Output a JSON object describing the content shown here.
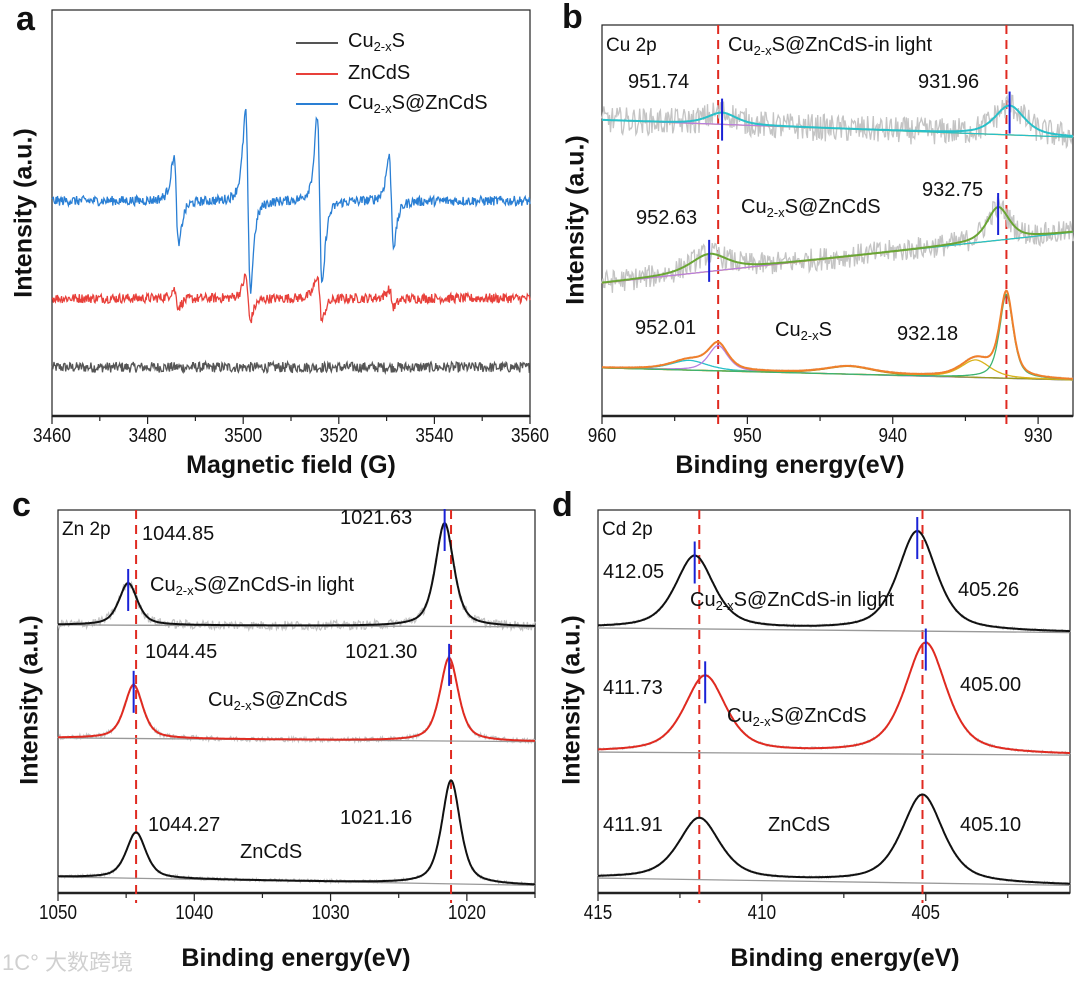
{
  "watermark": "1C° 大数跨境",
  "panels": {
    "a": "a",
    "b": "b",
    "c": "c",
    "d": "d"
  },
  "chart_data": [
    {
      "panel": "a",
      "type": "line",
      "xlabel": "Magnetic field (G)",
      "ylabel": "Intensity (a.u.)",
      "xlim": [
        3460,
        3560
      ],
      "ylim": [
        0,
        10
      ],
      "xticks": [
        3460,
        3480,
        3500,
        3520,
        3540,
        3560
      ],
      "legend": "top-right",
      "series": [
        {
          "name": "Cu2-xS",
          "color": "#555555",
          "baseline": 1.2,
          "noise": 0.13,
          "features": []
        },
        {
          "name": "ZnCdS",
          "color": "#e8403a",
          "baseline": 2.9,
          "noise": 0.12,
          "features": [
            {
              "center": 3486,
              "amplitude": 0.2
            },
            {
              "center": 3501,
              "amplitude": 0.5
            },
            {
              "center": 3516,
              "amplitude": 0.5
            },
            {
              "center": 3531,
              "amplitude": 0.2
            }
          ]
        },
        {
          "name": "Cu2-xS@ZnCdS",
          "color": "#2a7fd4",
          "baseline": 5.3,
          "noise": 0.12,
          "features": [
            {
              "center": 3486,
              "amplitude": 1.0
            },
            {
              "center": 3501,
              "amplitude": 2.0
            },
            {
              "center": 3516,
              "amplitude": 1.9
            },
            {
              "center": 3531,
              "amplitude": 1.0
            }
          ]
        }
      ]
    },
    {
      "panel": "b",
      "type": "line",
      "title": "Cu 2p",
      "xlabel": "Binding energy(eV)",
      "ylabel": "Intensity (a.u.)",
      "xlim": [
        960,
        927.6
      ],
      "ylim": [
        0,
        10
      ],
      "xticks": [
        960,
        950,
        940,
        930
      ],
      "reference_lines": [
        952.01,
        932.18
      ],
      "series": [
        {
          "name": "Cu2-xS@ZnCdS-in light",
          "fit_color": "#29c0c8",
          "baseline": [
            7.57,
            7.13
          ],
          "noise": 0.35,
          "marker": true,
          "peaks": [
            {
              "center": 951.74,
              "height": 0.3,
              "width": 1.2,
              "label": "951.74"
            },
            {
              "center": 931.96,
              "height": 0.75,
              "width": 1.2,
              "label": "931.96"
            }
          ]
        },
        {
          "name": "Cu2-xS@ZnCdS",
          "fit_color": "#6aa534",
          "baseline": [
            3.4,
            4.7
          ],
          "noise": 0.3,
          "marker": true,
          "peaks": [
            {
              "center": 952.63,
              "height": 0.45,
              "width": 1.5,
              "label": "952.63"
            },
            {
              "center": 932.75,
              "height": 0.85,
              "width": 0.9,
              "label": "932.75"
            }
          ]
        },
        {
          "name": "Cu2-xS",
          "fit_color": "#f07f2b",
          "baseline": [
            1.23,
            0.92
          ],
          "noise": 0.02,
          "marker": false,
          "peaks": [
            {
              "center": 954,
              "height": 0.25,
              "width": 1.5
            },
            {
              "center": 952.01,
              "height": 0.65,
              "width": 0.8,
              "label": "952.01"
            },
            {
              "center": 943,
              "height": 0.2,
              "width": 2
            },
            {
              "center": 934.3,
              "height": 0.45,
              "width": 1.2
            },
            {
              "center": 932.18,
              "height": 2.15,
              "width": 0.55,
              "label": "932.18"
            }
          ]
        }
      ]
    },
    {
      "panel": "c",
      "type": "line",
      "title": "Zn 2p",
      "xlabel": "Binding energy(eV)",
      "ylabel": "Intensity (a.u.)",
      "xlim": [
        1050,
        1015
      ],
      "ylim": [
        0,
        10
      ],
      "xticks": [
        1050,
        1040,
        1030,
        1020
      ],
      "reference_lines": [
        1044.27,
        1021.16
      ],
      "series": [
        {
          "name": "Cu2-xS@ZnCdS-in light",
          "fit_color": "#111111",
          "baseline": [
            7.0,
            6.95
          ],
          "noise": 0.12,
          "marker": true,
          "peaks": [
            {
              "center": 1044.85,
              "height": 1.1,
              "width": 0.8,
              "label": "1044.85"
            },
            {
              "center": 1021.63,
              "height": 2.7,
              "width": 0.8,
              "label": "1021.63"
            }
          ]
        },
        {
          "name": "Cu2-xS@ZnCdS",
          "fit_color": "#e02a20",
          "baseline": [
            4.05,
            3.95
          ],
          "noise": 0.06,
          "marker": true,
          "peaks": [
            {
              "center": 1044.45,
              "height": 1.4,
              "width": 0.8,
              "label": "1044.45"
            },
            {
              "center": 1021.3,
              "height": 2.17,
              "width": 0.8,
              "label": "1021.30"
            }
          ]
        },
        {
          "name": "ZnCdS",
          "fit_color": "#111111",
          "baseline": [
            0.42,
            0.2
          ],
          "noise": 0.04,
          "marker": false,
          "peaks": [
            {
              "center": 1044.27,
              "height": 1.2,
              "width": 0.85,
              "label": "1044.27"
            },
            {
              "center": 1021.16,
              "height": 2.7,
              "width": 0.8,
              "label": "1021.16"
            }
          ]
        }
      ]
    },
    {
      "panel": "d",
      "type": "line",
      "title": "Cd 2p",
      "xlabel": "Binding energy(eV)",
      "ylabel": "Intensity (a.u.)",
      "xlim": [
        415,
        400.6
      ],
      "ylim": [
        0,
        10
      ],
      "xticks": [
        415,
        410,
        405
      ],
      "reference_lines": [
        411.91,
        405.1
      ],
      "series": [
        {
          "name": "Cu2-xS@ZnCdS-in light",
          "fit_color": "#111111",
          "baseline": [
            6.92,
            6.8
          ],
          "noise": 0.03,
          "marker": true,
          "peaks": [
            {
              "center": 412.05,
              "height": 1.9,
              "width": 0.7,
              "label": "412.05"
            },
            {
              "center": 405.26,
              "height": 2.6,
              "width": 0.7,
              "label": "405.26"
            }
          ]
        },
        {
          "name": "Cu2-xS@ZnCdS",
          "fit_color": "#e02a20",
          "baseline": [
            3.68,
            3.6
          ],
          "noise": 0.03,
          "marker": true,
          "peaks": [
            {
              "center": 411.73,
              "height": 2.0,
              "width": 0.75,
              "label": "411.73"
            },
            {
              "center": 405.0,
              "height": 2.9,
              "width": 0.75,
              "label": "405.00"
            }
          ]
        },
        {
          "name": "ZnCdS",
          "fit_color": "#111111",
          "baseline": [
            0.39,
            0.2
          ],
          "noise": 0.03,
          "marker": false,
          "peaks": [
            {
              "center": 411.91,
              "height": 1.6,
              "width": 0.75,
              "label": "411.91"
            },
            {
              "center": 405.1,
              "height": 2.3,
              "width": 0.75,
              "label": "405.10"
            }
          ]
        }
      ]
    }
  ]
}
